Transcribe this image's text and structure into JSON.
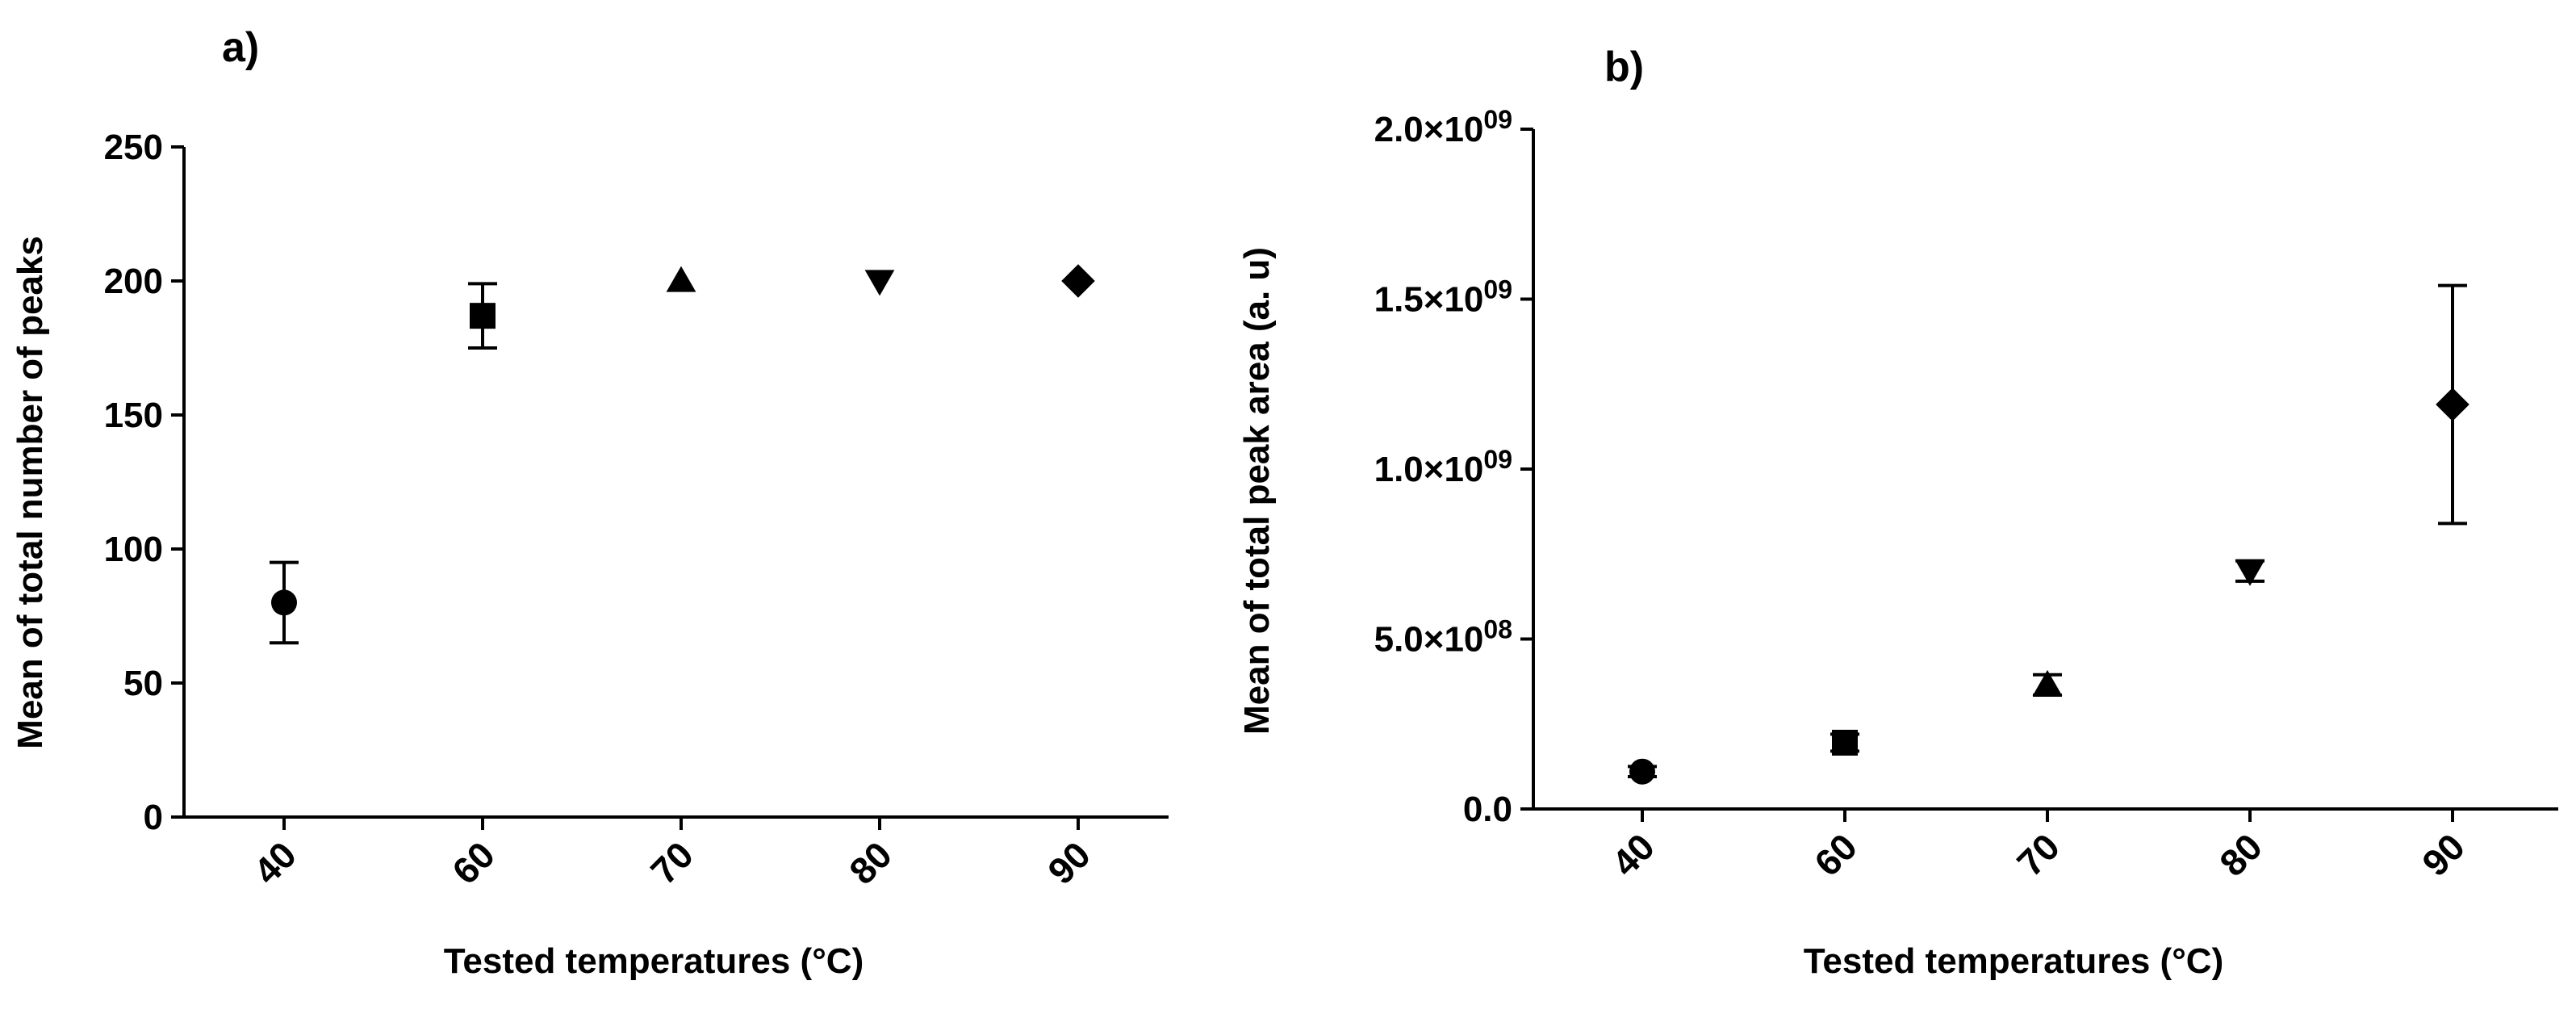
{
  "chart_data": [
    {
      "type": "scatter",
      "panel_label": "a)",
      "xlabel": "Tested temperatures (°C)",
      "ylabel": "Mean of total number of peaks",
      "categories": [
        "40",
        "60",
        "70",
        "80",
        "90"
      ],
      "ylim": [
        0,
        250
      ],
      "yticks": [
        0,
        50,
        100,
        150,
        200,
        250
      ],
      "ytick_labels": [
        "0",
        "50",
        "100",
        "150",
        "200",
        "250"
      ],
      "points": [
        {
          "x": "40",
          "y": 80,
          "err": 15,
          "marker": "circle"
        },
        {
          "x": "60",
          "y": 187,
          "err": 12,
          "marker": "square"
        },
        {
          "x": "70",
          "y": 200,
          "err": 0,
          "marker": "triangle-up"
        },
        {
          "x": "80",
          "y": 200,
          "err": 0,
          "marker": "triangle-down"
        },
        {
          "x": "90",
          "y": 200,
          "err": 0,
          "marker": "diamond"
        }
      ],
      "grid": false,
      "color": "#000000"
    },
    {
      "type": "scatter",
      "panel_label": "b)",
      "xlabel": "Tested temperatures (°C)",
      "ylabel": "Mean of total peak area (a. u)",
      "categories": [
        "40",
        "60",
        "70",
        "80",
        "90"
      ],
      "ylim": [
        0,
        2000000000
      ],
      "yticks": [
        0,
        500000000,
        1000000000,
        1500000000,
        2000000000
      ],
      "ytick_labels": [
        {
          "base": "0.0",
          "exp": ""
        },
        {
          "base": "5.0×10",
          "exp": "08"
        },
        {
          "base": "1.0×10",
          "exp": "09"
        },
        {
          "base": "1.5×10",
          "exp": "09"
        },
        {
          "base": "2.0×10",
          "exp": "09"
        }
      ],
      "points": [
        {
          "x": "40",
          "y": 110000000,
          "err": 15000000,
          "marker": "circle"
        },
        {
          "x": "60",
          "y": 195000000,
          "err": 25000000,
          "marker": "square"
        },
        {
          "x": "70",
          "y": 365000000,
          "err": 30000000,
          "marker": "triangle-up"
        },
        {
          "x": "80",
          "y": 700000000,
          "err": 30000000,
          "marker": "triangle-down"
        },
        {
          "x": "90",
          "y": 1190000000,
          "err": 350000000,
          "marker": "diamond"
        }
      ],
      "grid": false,
      "color": "#000000"
    }
  ]
}
